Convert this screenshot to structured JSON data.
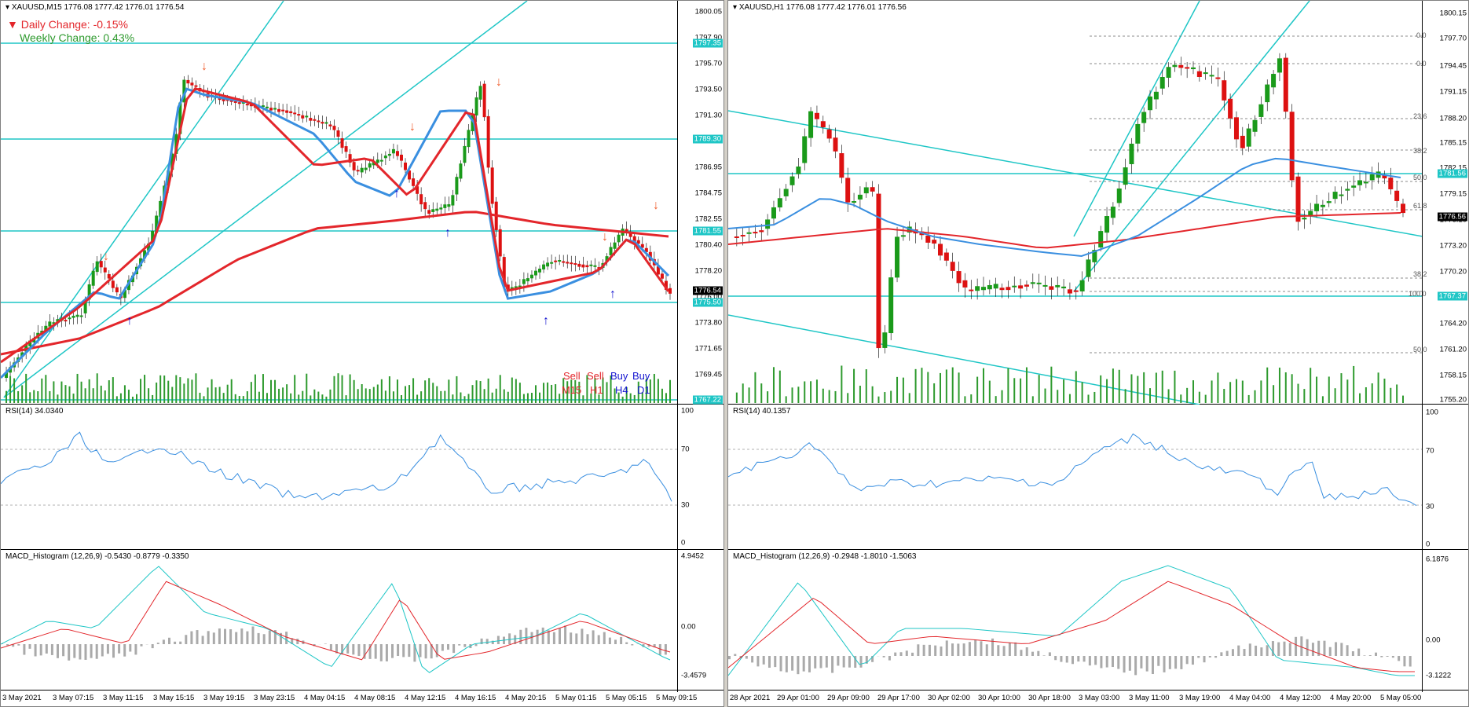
{
  "left": {
    "title": "XAUUSD,M15  1776.08 1777.42 1776.01 1776.54",
    "daily_change": "Daily Change: -0.15%",
    "weekly_change": "Weekly Change: 0.43%",
    "price_ticks": [
      "1800.05",
      "1797.90",
      "1795.70",
      "1793.50",
      "1791.30",
      "1789.10",
      "1786.95",
      "1784.75",
      "1782.55",
      "1780.40",
      "1778.20",
      "1776.00",
      "1773.80",
      "1771.65",
      "1769.45"
    ],
    "hline_labels": [
      "1797.35",
      "1789.30",
      "1781.55",
      "1775.50",
      "1767.22"
    ],
    "current_price": "1776.54",
    "signals": {
      "row1": [
        "Sell",
        "Sell",
        "Buy",
        "Buy"
      ],
      "row2": [
        "M15",
        "H1",
        "H4",
        "D1"
      ]
    },
    "rsi_title": "RSI(14) 34.0340",
    "rsi_ticks": [
      "100",
      "70",
      "30",
      "0"
    ],
    "macd_title": "MACD_Histogram (12,26,9) -0.5430 -0.8779 -0.3350",
    "macd_ticks": [
      "4.9452",
      "0.00",
      "-3.4579"
    ],
    "time_labels": [
      "3 May 2021",
      "3 May 07:15",
      "3 May 11:15",
      "3 May 15:15",
      "3 May 19:15",
      "3 May 23:15",
      "4 May 04:15",
      "4 May 08:15",
      "4 May 12:15",
      "4 May 16:15",
      "4 May 20:15",
      "5 May 01:15",
      "5 May 05:15",
      "5 May 09:15"
    ]
  },
  "right": {
    "title": "XAUUSD,H1  1776.08 1777.42 1776.01 1776.56",
    "price_ticks": [
      "1800.15",
      "1797.70",
      "1794.45",
      "1791.15",
      "1788.20",
      "1785.15",
      "1782.15",
      "1779.15",
      "1776.10",
      "1773.20",
      "1770.20",
      "1767.15",
      "1764.20",
      "1761.20",
      "1758.15",
      "1755.20"
    ],
    "hline_labels": [
      "1781.56",
      "1767.37"
    ],
    "current_price": "1776.56",
    "fib_levels": [
      "0.0",
      "0.0",
      "23.6",
      "38.2",
      "50.0",
      "61.8",
      "38.2",
      "100.0",
      "50.0"
    ],
    "rsi_title": "RSI(14) 40.1357",
    "rsi_ticks": [
      "100",
      "70",
      "30",
      "0"
    ],
    "macd_title": "MACD_Histogram (12,26,9) -0.2948 -1.8010 -1.5063",
    "macd_ticks": [
      "6.1876",
      "0.00",
      "-3.1222"
    ],
    "time_labels": [
      "28 Apr 2021",
      "29 Apr 01:00",
      "29 Apr 09:00",
      "29 Apr 17:00",
      "30 Apr 02:00",
      "30 Apr 10:00",
      "30 Apr 18:00",
      "3 May 03:00",
      "3 May 11:00",
      "3 May 19:00",
      "4 May 04:00",
      "4 May 12:00",
      "4 May 20:00",
      "5 May 05:00"
    ]
  },
  "colors": {
    "cyan": "#1fc6c6",
    "red": "#e3262b",
    "blue": "#3a8fe0",
    "green": "#2e9a2e",
    "down": "#d11",
    "up": "#1a9a1a"
  }
}
